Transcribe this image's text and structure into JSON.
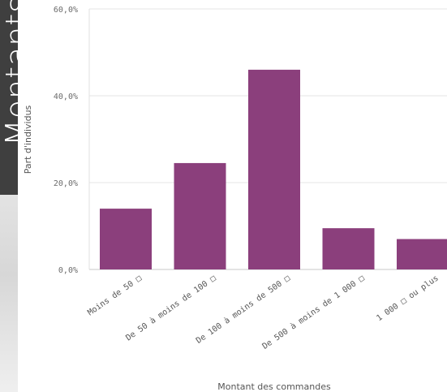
{
  "side_panel": {
    "title": "Montants"
  },
  "colors": {
    "bar": "#8b3f7c",
    "grid": "#e6e6e6",
    "panel": "#3f3f3f"
  },
  "chart_data": {
    "type": "bar",
    "categories": [
      "Moins de 50 □",
      "De 50 à moins de 100 □",
      "De 100 à moins de 500 □",
      "De 500 à moins de 1 000 □",
      "1 000 □ ou plus"
    ],
    "values": [
      14.0,
      24.5,
      46.0,
      9.5,
      7.0
    ],
    "xlabel": "Montant des commandes",
    "ylabel": "Part d'individus",
    "ylim": [
      0,
      60
    ],
    "yticks": [
      0,
      20,
      40,
      60
    ],
    "ytick_labels": [
      "0,0%",
      "20,0%",
      "40,0%",
      "60,0%"
    ],
    "grid": true
  }
}
